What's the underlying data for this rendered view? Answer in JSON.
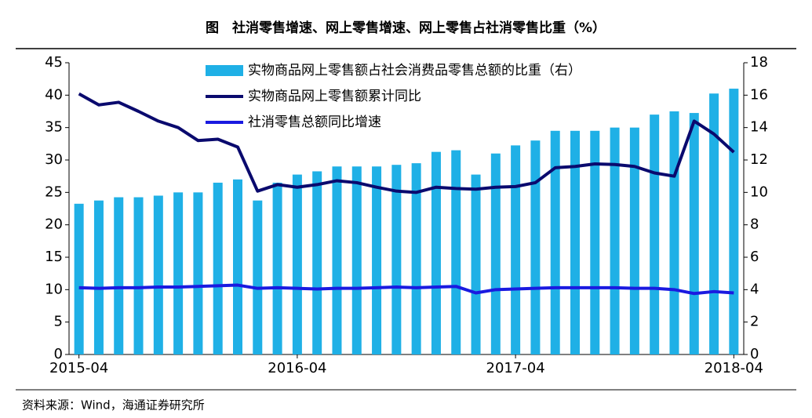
{
  "chart_data": {
    "type": "bar",
    "title": "图　社消零售增速、网上零售增速、网上零售占社消零售比重（%）",
    "source": "资料来源：Wind，海通证券研究所",
    "categories": [
      "2015-04",
      null,
      null,
      null,
      null,
      null,
      null,
      null,
      null,
      null,
      null,
      "2016-04",
      null,
      null,
      null,
      null,
      null,
      null,
      null,
      null,
      null,
      null,
      "2017-04",
      null,
      null,
      null,
      null,
      null,
      null,
      null,
      null,
      null,
      null,
      "2018-04"
    ],
    "ylim": [
      0,
      45
    ],
    "yticks": [
      0,
      5,
      10,
      15,
      20,
      25,
      30,
      35,
      40,
      45
    ],
    "y2lim": [
      0,
      18
    ],
    "y2ticks": [
      0,
      2,
      4,
      6,
      8,
      10,
      12,
      14,
      16,
      18
    ],
    "grid": false,
    "legend": "top",
    "series": [
      {
        "name": "实物商品网上零售额占社会消费品零售总额的比重（右）",
        "type": "bar",
        "axis": "y2",
        "color": "#1fb0e6",
        "values": [
          9.3,
          9.5,
          9.7,
          9.7,
          9.8,
          10.0,
          10.0,
          10.6,
          10.8,
          9.5,
          10.6,
          11.1,
          11.3,
          11.6,
          11.6,
          11.6,
          11.7,
          11.8,
          12.5,
          12.6,
          11.1,
          12.4,
          12.9,
          13.2,
          13.8,
          13.8,
          13.8,
          14.0,
          14.0,
          14.8,
          15.0,
          14.9,
          16.1,
          16.4
        ]
      },
      {
        "name": "实物商品网上零售额累计同比",
        "type": "line",
        "axis": "y",
        "color": "#0a0a6e",
        "values": [
          40.2,
          38.5,
          38.9,
          37.5,
          36.0,
          35.0,
          33.0,
          33.2,
          32.0,
          25.2,
          26.2,
          25.8,
          26.2,
          26.8,
          26.5,
          25.8,
          25.2,
          25.0,
          25.8,
          25.6,
          25.5,
          25.8,
          25.9,
          26.5,
          28.8,
          29.0,
          29.4,
          29.3,
          29.0,
          28.0,
          27.5,
          36.0,
          34.0,
          31.2
        ]
      },
      {
        "name": "社消零售总额同比增速",
        "type": "line",
        "axis": "y",
        "color": "#1a1ae0",
        "values": [
          10.3,
          10.2,
          10.3,
          10.3,
          10.4,
          10.4,
          10.5,
          10.6,
          10.7,
          10.2,
          10.3,
          10.2,
          10.1,
          10.2,
          10.2,
          10.3,
          10.4,
          10.3,
          10.4,
          10.5,
          9.5,
          10.0,
          10.1,
          10.2,
          10.3,
          10.3,
          10.3,
          10.3,
          10.2,
          10.2,
          10.0,
          9.4,
          9.7,
          9.5
        ]
      }
    ]
  }
}
